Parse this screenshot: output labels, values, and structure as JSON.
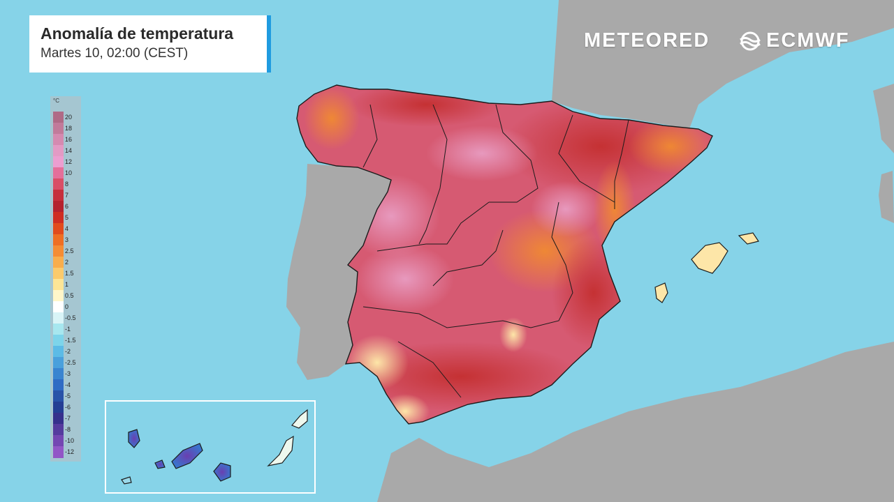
{
  "title": {
    "main": "Anomalía de temperatura",
    "subtitle": "Martes 10, 02:00 (CEST)"
  },
  "branding": {
    "meteored": "METEORED",
    "ecmwf": "ECMWF",
    "icon": "ecmwf-logo-icon"
  },
  "legend": {
    "unit": "°C",
    "labels": [
      "20",
      "18",
      "16",
      "14",
      "12",
      "10",
      "8",
      "7",
      "6",
      "5",
      "4",
      "3",
      "2.5",
      "2",
      "1.5",
      "1",
      "0.5",
      "0",
      "-0.5",
      "-1",
      "-1.5",
      "-2",
      "-2.5",
      "-3",
      "-4",
      "-5",
      "-6",
      "-7",
      "-8",
      "-10",
      "-12"
    ],
    "colors": [
      "#b06a86",
      "#c27a9a",
      "#d58ab0",
      "#e39ac4",
      "#ec9ed0",
      "#e46f9a",
      "#d94e66",
      "#c62f3c",
      "#b5222e",
      "#cf2d22",
      "#e24a1c",
      "#ef6e23",
      "#f58c34",
      "#f9ad4c",
      "#fbca6c",
      "#fde596",
      "#fff6c9",
      "#ffffff",
      "#d9f4f7",
      "#a7e7ef",
      "#7dd4ea",
      "#5cbbe6",
      "#4aa0dc",
      "#3a84d0",
      "#2f6bc4",
      "#2852a8",
      "#243e94",
      "#36308c",
      "#553b9e",
      "#7446b2",
      "#9256c6"
    ]
  },
  "colors": {
    "sea": "#86d3e8",
    "land_other": "#a9a9a9",
    "anomaly_base": "#d65a72",
    "anomaly_hot": "#c2302a",
    "anomaly_warm": "#ef7a2a",
    "inset_border": "#ffffff"
  }
}
